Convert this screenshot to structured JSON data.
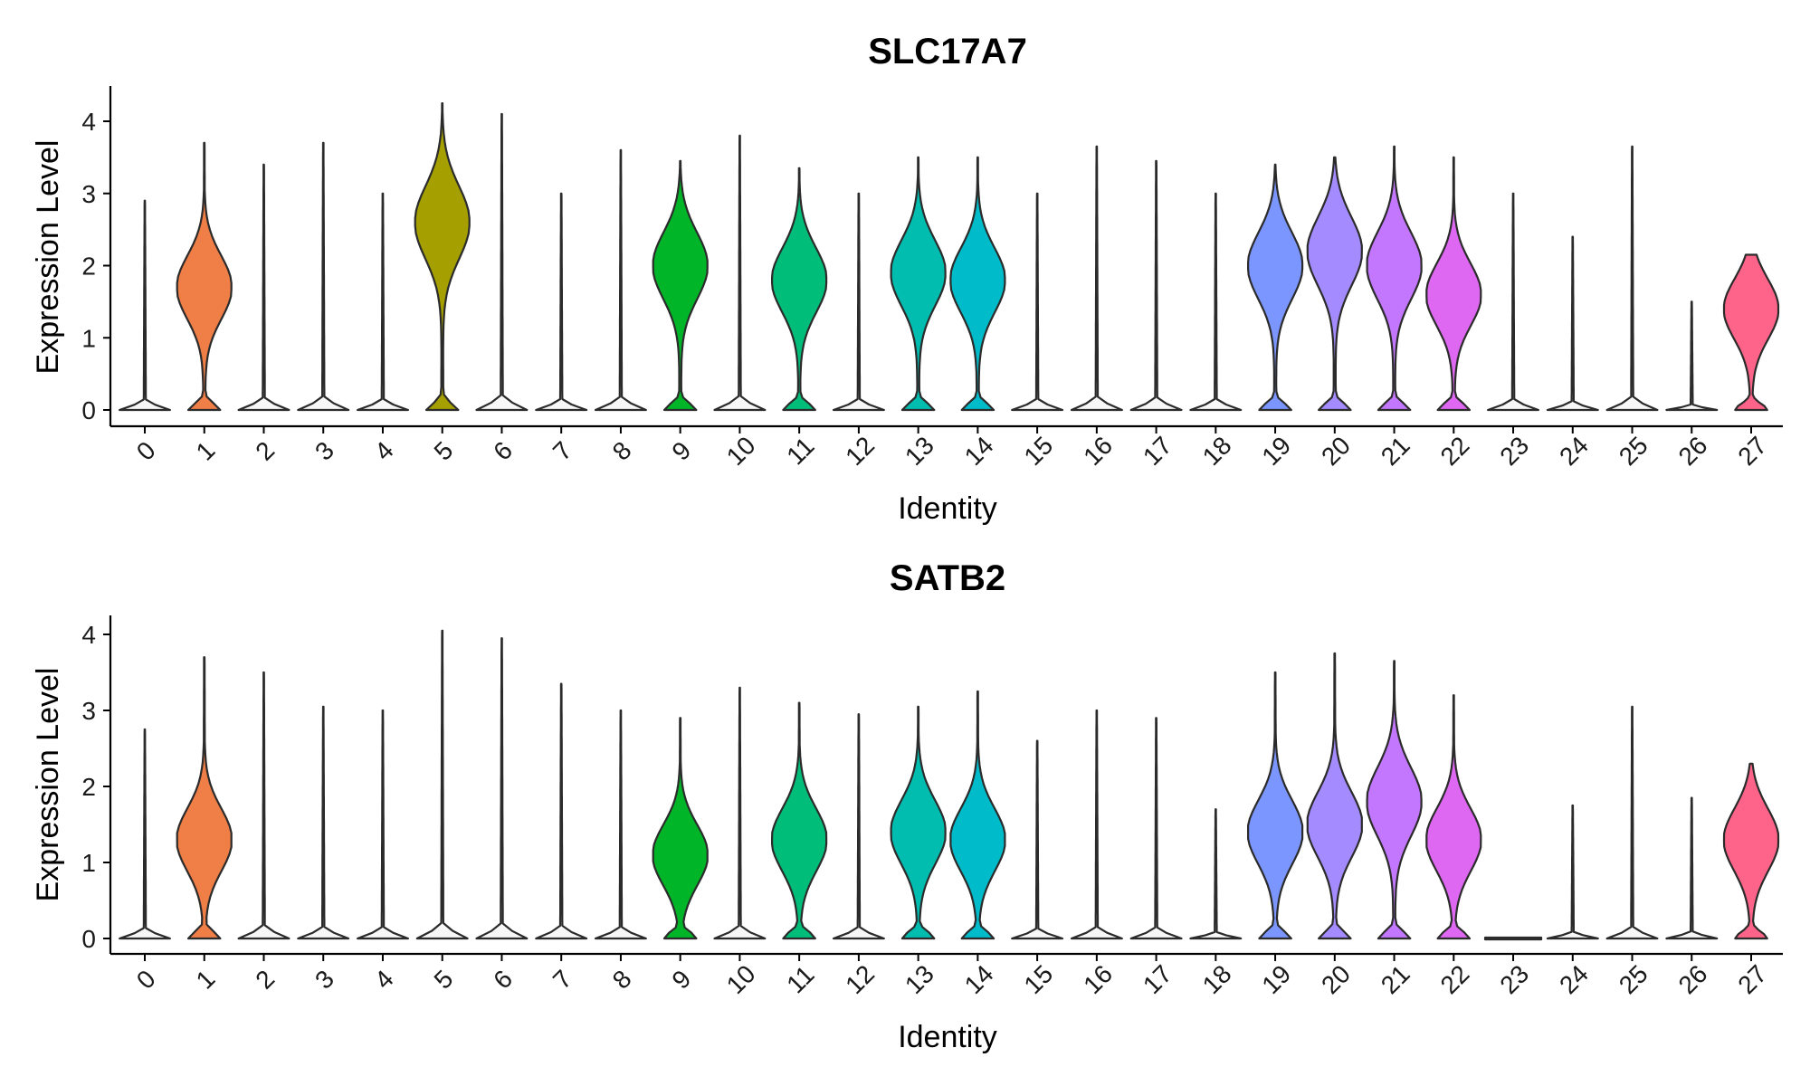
{
  "chart_data": [
    {
      "type": "violin",
      "title": "SLC17A7",
      "xlabel": "Identity",
      "ylabel": "Expression Level",
      "categories": [
        "0",
        "1",
        "2",
        "3",
        "4",
        "5",
        "6",
        "7",
        "8",
        "9",
        "10",
        "11",
        "12",
        "13",
        "14",
        "15",
        "16",
        "17",
        "18",
        "19",
        "20",
        "21",
        "22",
        "23",
        "24",
        "25",
        "26",
        "27"
      ],
      "yticks": [
        "0",
        "1",
        "2",
        "3",
        "4"
      ],
      "ylim": [
        -0.2,
        4.5
      ],
      "max_values": [
        2.9,
        3.7,
        3.4,
        3.7,
        3.0,
        4.25,
        4.1,
        3.0,
        3.6,
        3.45,
        3.8,
        3.35,
        3.0,
        3.5,
        3.5,
        3.0,
        3.65,
        3.45,
        3.0,
        3.4,
        3.5,
        3.65,
        3.5,
        3.0,
        2.4,
        3.65,
        1.5,
        2.15
      ],
      "min_values": [
        0,
        0,
        0,
        0,
        0,
        0,
        0,
        0,
        0,
        0,
        0,
        0,
        0,
        0,
        0,
        0,
        0,
        0,
        0,
        0,
        0,
        0,
        0,
        0,
        0,
        0,
        0,
        0
      ],
      "modes": [
        0,
        1.7,
        0,
        0,
        0,
        2.6,
        0,
        0,
        0,
        2.0,
        0,
        1.8,
        0,
        1.9,
        1.8,
        0,
        0,
        0,
        0,
        2.0,
        2.2,
        2.0,
        1.6,
        0,
        0,
        0,
        0,
        1.4
      ]
    },
    {
      "type": "violin",
      "title": "SATB2",
      "xlabel": "Identity",
      "ylabel": "Expression Level",
      "categories": [
        "0",
        "1",
        "2",
        "3",
        "4",
        "5",
        "6",
        "7",
        "8",
        "9",
        "10",
        "11",
        "12",
        "13",
        "14",
        "15",
        "16",
        "17",
        "18",
        "19",
        "20",
        "21",
        "22",
        "23",
        "24",
        "25",
        "26",
        "27"
      ],
      "yticks": [
        "0",
        "1",
        "2",
        "3",
        "4"
      ],
      "ylim": [
        -0.2,
        4.25
      ],
      "max_values": [
        2.75,
        3.7,
        3.5,
        3.05,
        3.0,
        4.05,
        3.95,
        3.35,
        3.0,
        2.9,
        3.3,
        3.1,
        2.95,
        3.05,
        3.25,
        2.6,
        3.0,
        2.9,
        1.7,
        3.5,
        3.75,
        3.65,
        3.2,
        0,
        1.75,
        3.05,
        1.85,
        2.3
      ],
      "min_values": [
        0,
        0,
        0,
        0,
        0,
        0,
        0,
        0,
        0,
        0,
        0,
        0,
        0,
        0,
        0,
        0,
        0,
        0,
        0,
        0,
        0,
        0,
        0,
        0,
        0,
        0,
        0,
        0
      ],
      "modes": [
        0,
        1.3,
        0,
        0,
        0,
        0,
        0,
        0,
        0,
        1.1,
        0,
        1.3,
        0,
        1.4,
        1.3,
        0,
        0,
        0,
        0,
        1.4,
        1.5,
        1.8,
        1.3,
        0,
        0,
        0,
        0,
        1.3
      ]
    }
  ],
  "colors": {
    "1": "#F07E47",
    "5": "#A5A000",
    "6": "#9BA100",
    "9": "#00B628",
    "11": "#00BE7A",
    "13": "#00BDB0",
    "14": "#00BBC9",
    "19": "#7B96FF",
    "20": "#A48BFF",
    "21": "#C377FF",
    "22": "#DE68F2",
    "27": "#FE6489",
    "thin": "#F7F7F7"
  }
}
